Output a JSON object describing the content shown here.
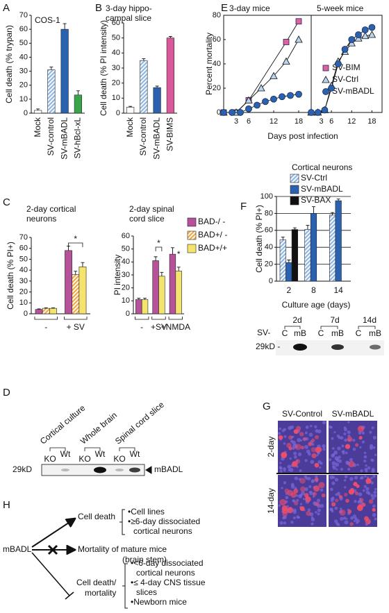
{
  "panel_labels": [
    "A",
    "B",
    "C",
    "D",
    "E",
    "F",
    "G",
    "H"
  ],
  "chart_data": [
    {
      "type": "bar",
      "title": [
        "COS-1"
      ],
      "ylabel": "Cell death (% trypan)",
      "categories": [
        "Mock",
        "SV-control",
        "SV-mBADL",
        "SV-hBcl-xL"
      ],
      "values": [
        2,
        31,
        60,
        13
      ],
      "errors": [
        1,
        2,
        4,
        3
      ],
      "colors": [
        "#ffffff",
        "#8fb6e3",
        "#2a62b0",
        "#3aa548"
      ],
      "hatch": [
        false,
        true,
        false,
        false
      ],
      "ylim": [
        0,
        70
      ],
      "yticks": [
        0,
        10,
        20,
        30,
        40,
        50,
        60,
        70
      ]
    },
    {
      "type": "bar",
      "title": [
        "3-day hippo-",
        "campal slice"
      ],
      "ylabel": "Cell death (% PI intensity)",
      "categories": [
        "Mock",
        "SV-control",
        "SV-mBADL",
        "SV-BIMS"
      ],
      "values": [
        4,
        35,
        17,
        50
      ],
      "errors": [
        0.5,
        1.2,
        1,
        1
      ],
      "colors": [
        "#ffffff",
        "#8fb6e3",
        "#2a62b0",
        "#d9589a"
      ],
      "hatch": [
        false,
        true,
        false,
        false
      ],
      "ylim": [
        0,
        60
      ],
      "yticks": [
        0,
        10,
        20,
        30,
        40,
        50,
        60
      ]
    },
    {
      "type": "line",
      "title": [
        "3-day mice"
      ],
      "ylabel": "Percent mortality",
      "xlabel": "Days post infection",
      "xlim": [
        0,
        21
      ],
      "xticks": [
        3,
        6,
        12,
        18
      ],
      "ylim": [
        0,
        80
      ],
      "yticks": [
        0,
        20,
        40,
        60,
        80
      ],
      "legend": true,
      "series": [
        {
          "name": "SV-BIM",
          "color": "#e0609f",
          "marker": "square",
          "x": [
            0,
            3,
            6,
            15,
            18
          ],
          "values": [
            0,
            0,
            10,
            58,
            75
          ]
        },
        {
          "name": "SV-Ctrl",
          "color": "#b8d4ee",
          "marker": "triangle",
          "x": [
            0,
            3,
            6,
            9,
            12,
            15,
            18
          ],
          "values": [
            0,
            0,
            10,
            20,
            30,
            42,
            60
          ]
        },
        {
          "name": "SV-mBADL",
          "color": "#2a62b0",
          "marker": "circle",
          "x": [
            0,
            2,
            4,
            6,
            8,
            10,
            12,
            14,
            16,
            18
          ],
          "values": [
            0,
            0,
            0,
            3,
            6,
            9,
            11,
            13,
            14,
            15
          ]
        }
      ]
    },
    {
      "type": "line",
      "title": [
        "5-week mice"
      ],
      "xlim": [
        0,
        21
      ],
      "xticks": [
        3,
        6,
        12,
        18
      ],
      "ylim": [
        0,
        80
      ],
      "series": [
        {
          "name": "SV-Ctrl",
          "color": "#b8d4ee",
          "marker": "triangle",
          "x": [
            0,
            2,
            4,
            6,
            8,
            10,
            12,
            14,
            16,
            18
          ],
          "values": [
            0,
            0,
            2,
            22,
            42,
            50,
            57,
            61,
            63,
            64
          ]
        },
        {
          "name": "SV-mBADL",
          "color": "#2a62b0",
          "marker": "circle",
          "x": [
            0,
            2,
            4,
            6,
            8,
            10,
            12,
            14,
            16,
            18
          ],
          "values": [
            0,
            0,
            2,
            20,
            40,
            52,
            60,
            64,
            68,
            70
          ]
        }
      ]
    },
    {
      "type": "bar",
      "title": [
        "2-day cortical",
        "neurons"
      ],
      "ylabel": "Cell death (% PI+)",
      "categories": [
        "-",
        "+ SV"
      ],
      "series": [
        {
          "name": "BAD-/ -",
          "color": "#b5529a",
          "values": [
            4,
            58
          ],
          "errors": [
            0.5,
            4
          ]
        },
        {
          "name": "BAD+/ -",
          "color": "#f0a840",
          "hatch": true,
          "values": [
            5,
            36
          ],
          "errors": [
            0.5,
            3
          ]
        },
        {
          "name": "BAD+/+",
          "color": "#f4e36c",
          "values": [
            5,
            43
          ],
          "errors": [
            0.5,
            4
          ]
        }
      ],
      "ylim": [
        0,
        70
      ],
      "yticks": [
        0,
        10,
        20,
        30,
        40,
        50,
        60,
        70
      ],
      "legend": true,
      "annotations": [
        "*"
      ]
    },
    {
      "type": "bar",
      "title": [
        "2-day spinal",
        "cord slice"
      ],
      "ylabel": "PI intensity",
      "categories": [
        "-",
        "+SV",
        "+NMDA"
      ],
      "series": [
        {
          "name": "BAD-/ -",
          "color": "#b5529a",
          "values": [
            11,
            41,
            46
          ],
          "errors": [
            1,
            3,
            5
          ]
        },
        {
          "name": "BAD+/+",
          "color": "#f4e36c",
          "values": [
            11,
            29,
            33
          ],
          "errors": [
            1,
            3,
            3
          ]
        }
      ],
      "ylim": [
        0,
        60
      ],
      "yticks": [
        0,
        10,
        20,
        30,
        40,
        50,
        60
      ],
      "annotations": [
        "*",
        "*"
      ]
    },
    {
      "type": "bar",
      "title": [
        "Cortical neurons"
      ],
      "ylabel": "Cell death (% PI+)",
      "xlabel": "Culture age (days)",
      "categories": [
        "2",
        "8",
        "14"
      ],
      "series": [
        {
          "name": "SV-Ctrl",
          "color": "#8fb6e3",
          "hatch": true,
          "values": [
            49,
            61,
            78
          ],
          "errors": [
            3,
            5,
            3
          ]
        },
        {
          "name": "SV-mBADL",
          "color": "#2a62b0",
          "values": [
            22,
            80,
            95
          ],
          "errors": [
            3,
            8,
            2
          ]
        },
        {
          "name": "SV-BAX",
          "color": "#111111",
          "values": [
            61,
            null,
            null
          ],
          "errors": [
            2,
            null,
            null
          ]
        }
      ],
      "ylim": [
        0,
        100
      ],
      "yticks": [
        0,
        20,
        40,
        60,
        80,
        100
      ],
      "grid": true,
      "legend": true
    }
  ],
  "blot_d": {
    "headers": [
      "Cortical culture",
      "Whole brain",
      "Spinal cord slice"
    ],
    "lanes": [
      "KO",
      "Wt",
      "KO",
      "Wt",
      "KO",
      "Wt"
    ],
    "marker": "29kD",
    "band": "mBADL"
  },
  "blot_f": {
    "headers": [
      "2d",
      "7d",
      "14d"
    ],
    "prefix": "SV-",
    "lanes": [
      "C",
      "mB",
      "C",
      "mB",
      "C",
      "mB"
    ],
    "marker": "29kD -"
  },
  "micrographs": {
    "columns": [
      "SV-Control",
      "SV-mBADL"
    ],
    "rows": [
      "2-day",
      "14-day"
    ]
  },
  "diagram": {
    "root": "mBADL",
    "branches": [
      {
        "label": [
          "Cell death"
        ],
        "items": [
          "•Cell lines",
          "•≥6-day dissociated",
          "cortical neurons"
        ]
      },
      {
        "label": [
          "Mortality of mature mice",
          "(brain stem)"
        ]
      },
      {
        "label": [
          "Cell death/",
          "mortality"
        ],
        "items": [
          "•<6-day dissociated",
          "cortical neurons",
          "•≤ 4-day CNS tissue",
          "slices",
          "•Newborn mice"
        ]
      }
    ]
  }
}
